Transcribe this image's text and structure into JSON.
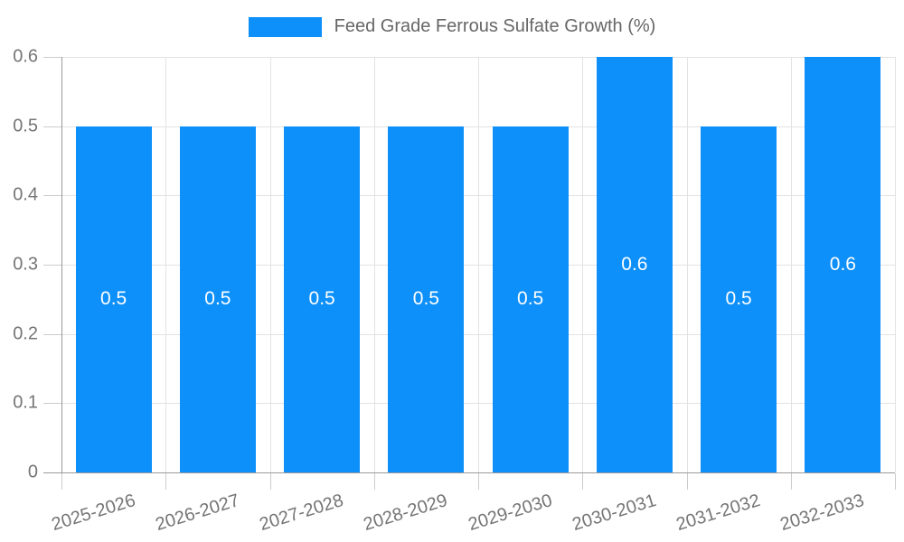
{
  "chart_data": {
    "type": "bar",
    "title": "Feed Grade Ferrous Sulfate Growth (%)",
    "legend": {
      "label": "Feed Grade Ferrous Sulfate Growth (%)",
      "position": "top-center"
    },
    "categories": [
      "2025-2026",
      "2026-2027",
      "2027-2028",
      "2028-2029",
      "2029-2030",
      "2030-2031",
      "2031-2032",
      "2032-2033"
    ],
    "series": [
      {
        "name": "Feed Grade Ferrous Sulfate Growth (%)",
        "values": [
          0.5,
          0.5,
          0.5,
          0.5,
          0.5,
          0.6,
          0.5,
          0.6
        ],
        "data_labels": [
          "0.5",
          "0.5",
          "0.5",
          "0.5",
          "0.5",
          "0.6",
          "0.5",
          "0.6"
        ]
      }
    ],
    "xlabel": "",
    "ylabel": "",
    "ylim": [
      0,
      0.6
    ],
    "yticks": [
      "0",
      "0.1",
      "0.2",
      "0.3",
      "0.4",
      "0.5",
      "0.6"
    ],
    "grid": "on",
    "colors": {
      "bar_fill": "#0e90fa",
      "data_label_text": "#ffffff",
      "gridline": "#e3e3e3",
      "axis_line": "#9a9a9a",
      "tick_line": "#cccccc",
      "axis_label_text": "#757575",
      "legend_text": "#666666",
      "background": "#ffffff"
    }
  }
}
